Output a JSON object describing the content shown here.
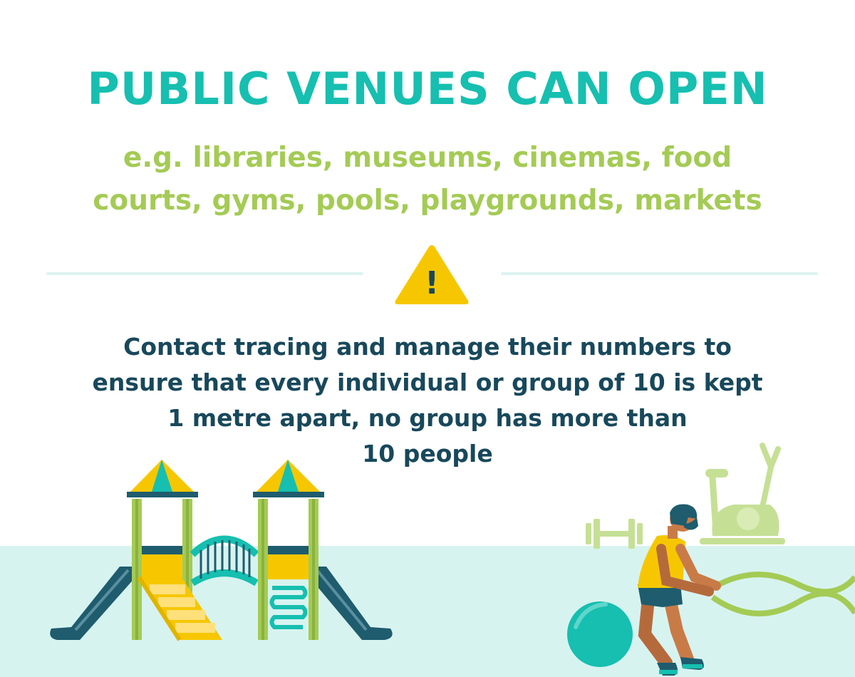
{
  "headline": "PUBLIC VENUES CAN OPEN",
  "subtitle_lines": [
    "e.g. libraries, museums, cinemas, food",
    "courts, gyms, pools, playgrounds, markets"
  ],
  "body_lines": [
    "Contact tracing and manage their numbers to",
    "ensure that every individual or group of 10 is kept",
    "1 metre apart, no group has more than",
    "10 people"
  ],
  "warning_symbol": "!",
  "icons": [
    "warning-triangle-icon",
    "playground-icon",
    "dumbbell-icon",
    "exercise-bike-icon",
    "exercise-ball-icon",
    "battle-ropes-athlete-icon"
  ],
  "colors": {
    "headline": "#16bfb0",
    "subtitle": "#a4cb55",
    "body": "#18485b",
    "warning": "#f6c700",
    "ground": "#d7f3f0"
  }
}
